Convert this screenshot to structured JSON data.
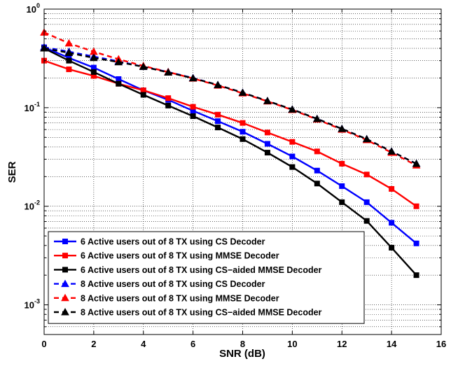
{
  "chart_data": {
    "type": "line",
    "title": "",
    "xlabel": "SNR (dB)",
    "ylabel": "SER",
    "xlim": [
      0,
      16
    ],
    "ylim": [
      0.0005,
      1
    ],
    "yscale": "log",
    "grid": true,
    "legend_position": "bottom-left",
    "x_ticks": [
      0,
      2,
      4,
      6,
      8,
      10,
      12,
      14,
      16
    ],
    "x_tick_labels": [
      "0",
      "2",
      "4",
      "6",
      "8",
      "10",
      "12",
      "14",
      "16"
    ],
    "y_ticks": [
      {
        "value": 1,
        "mantissa": "10",
        "exponent": "0"
      },
      {
        "value": 0.1,
        "mantissa": "10",
        "exponent": "-1"
      },
      {
        "value": 0.01,
        "mantissa": "10",
        "exponent": "-2"
      },
      {
        "value": 0.001,
        "mantissa": "10",
        "exponent": "-3"
      }
    ],
    "x": [
      0,
      1,
      2,
      3,
      4,
      5,
      6,
      7,
      8,
      9,
      10,
      11,
      12,
      13,
      14,
      15
    ],
    "series": [
      {
        "name": "6 Active users out of 8 TX using CS Decoder",
        "color": "#0000ff",
        "dash": "solid",
        "marker": "square",
        "values": [
          0.41,
          0.32,
          0.255,
          0.195,
          0.15,
          0.12,
          0.093,
          0.073,
          0.057,
          0.043,
          0.032,
          0.023,
          0.016,
          0.011,
          0.0068,
          0.0042
        ]
      },
      {
        "name": "6 Active users out of 8 TX using MMSE Decoder",
        "color": "#ff0000",
        "dash": "solid",
        "marker": "square",
        "values": [
          0.3,
          0.245,
          0.21,
          0.175,
          0.15,
          0.125,
          0.102,
          0.085,
          0.07,
          0.056,
          0.045,
          0.036,
          0.027,
          0.021,
          0.015,
          0.01
        ]
      },
      {
        "name": "6 Active users out of 8 TX using CS−aided MMSE Decoder",
        "color": "#000000",
        "dash": "solid",
        "marker": "square",
        "values": [
          0.4,
          0.3,
          0.23,
          0.175,
          0.135,
          0.105,
          0.082,
          0.063,
          0.048,
          0.035,
          0.025,
          0.017,
          0.011,
          0.0071,
          0.0038,
          0.002
        ]
      },
      {
        "name": "8 Active users out of 8 TX using CS Decoder",
        "color": "#0000ff",
        "dash": "dashed",
        "marker": "triangle",
        "values": [
          0.41,
          0.37,
          0.33,
          0.295,
          0.26,
          0.23,
          0.2,
          0.17,
          0.142,
          0.117,
          0.096,
          0.077,
          0.061,
          0.048,
          0.036,
          0.027
        ]
      },
      {
        "name": "8 Active users out of 8 TX using MMSE Decoder",
        "color": "#ff0000",
        "dash": "dashed",
        "marker": "triangle",
        "values": [
          0.58,
          0.45,
          0.37,
          0.31,
          0.265,
          0.23,
          0.198,
          0.168,
          0.14,
          0.116,
          0.095,
          0.076,
          0.06,
          0.047,
          0.035,
          0.026
        ]
      },
      {
        "name": "8 Active users out of 8 TX using CS−aided MMSE Decoder",
        "color": "#000000",
        "dash": "dashed",
        "marker": "triangle",
        "values": [
          0.4,
          0.36,
          0.32,
          0.29,
          0.26,
          0.228,
          0.199,
          0.17,
          0.142,
          0.117,
          0.096,
          0.077,
          0.061,
          0.048,
          0.036,
          0.027
        ]
      }
    ]
  }
}
